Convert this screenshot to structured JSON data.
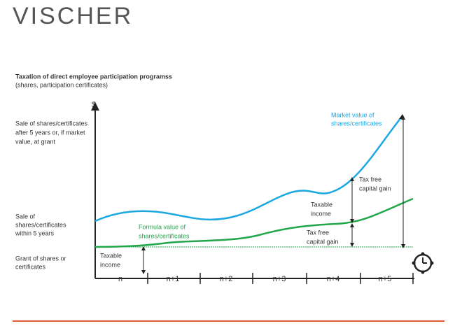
{
  "logo": "VISCHER",
  "title": "Taxation of direct employee participation programss",
  "subtitle": "(shares, participation certificates)",
  "y_axis_symbol": "$",
  "left_labels": [
    [
      "Sale of shares/certificates",
      "after 5 years or, if market",
      "value, at grant"
    ],
    [
      "Sale of",
      "shares/certificates",
      "within 5 years"
    ],
    [
      "Grant of shares or",
      "certificates"
    ]
  ],
  "curve_labels": {
    "market_value": [
      "Market value of",
      "shares/certificates"
    ],
    "formula_value": [
      "Formula value of",
      "shares/certificates"
    ]
  },
  "annotations": [
    [
      "Taxable",
      "income"
    ],
    [
      "Tax free",
      "capital gain"
    ],
    [
      "Taxable",
      "income"
    ],
    [
      "Tax free",
      "capital gain"
    ]
  ],
  "x_labels": [
    "n",
    "n+1",
    "n+2",
    "n+3",
    "n+4",
    "n+5"
  ]
}
